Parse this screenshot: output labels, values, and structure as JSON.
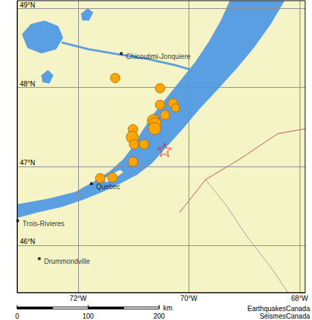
{
  "chart_data": {
    "type": "scatter",
    "x": [
      -71.33,
      -70.52,
      -70.52,
      -70.29,
      -70.24,
      -70.43,
      -70.64,
      -70.61,
      -70.62,
      -71.01,
      -71.02,
      -70.99,
      -70.81,
      -71.01,
      -71.38,
      -71.6
    ],
    "y": [
      48.12,
      47.99,
      47.78,
      47.8,
      47.74,
      47.65,
      47.58,
      47.54,
      47.48,
      47.47,
      47.37,
      47.28,
      47.28,
      47.06,
      46.86,
      46.85
    ],
    "magnitudes": [
      2.5,
      2.5,
      2.5,
      2.5,
      2.2,
      2.5,
      3.2,
      3.2,
      3.2,
      2.5,
      3.2,
      2.5,
      2.5,
      2.5,
      2.5,
      2.5
    ],
    "color": "#ffa500",
    "marker": "circle",
    "xlim": [
      -73.1,
      -67.9
    ],
    "xticks": [
      {
        "value": -72,
        "label": "72°W"
      },
      {
        "value": -70,
        "label": "70°W"
      },
      {
        "value": -68,
        "label": "68°W"
      }
    ],
    "ylim": [
      45.4,
      49.1
    ],
    "yticks": [
      {
        "value": 46,
        "label": "46°N"
      },
      {
        "value": 47,
        "label": "47°N"
      },
      {
        "value": 48,
        "label": "48°N"
      },
      {
        "value": 49,
        "label": "49°N"
      }
    ],
    "grid": true,
    "epicenter": {
      "x": -70.44,
      "y": 47.21,
      "marker": "star",
      "color": "#ff0000"
    },
    "cities": [
      {
        "label": "Chicoutimi-Jonquiere",
        "x": -71.22,
        "y": 48.43
      },
      {
        "label": "Quebec",
        "x": -71.76,
        "y": 46.78
      },
      {
        "label": "Trois-Rivieres",
        "x": -73.09,
        "y": 46.31
      },
      {
        "label": "Drummondville",
        "x": -72.7,
        "y": 45.83
      }
    ],
    "scale_bar": {
      "values": [
        0,
        100,
        200
      ],
      "unit": "km"
    },
    "credits": [
      "EarthquakesCanada",
      "SéismesCanada"
    ]
  }
}
